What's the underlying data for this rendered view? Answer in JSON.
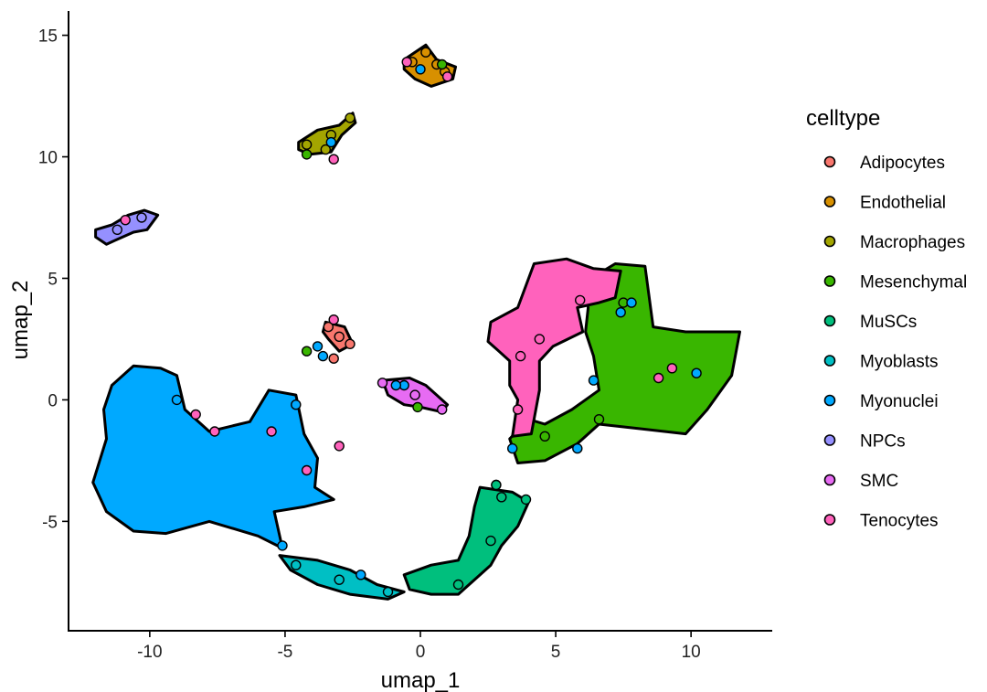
{
  "chart_data": {
    "type": "scatter",
    "title": "",
    "xlabel": "umap_1",
    "ylabel": "umap_2",
    "xlim": [
      -13.0,
      13.0
    ],
    "ylim": [
      -9.5,
      16.0
    ],
    "x_ticks": [
      -10,
      -5,
      0,
      5,
      10
    ],
    "x_tick_labels": [
      "-10",
      "-5",
      "0",
      "5",
      "10"
    ],
    "y_ticks": [
      -5,
      0,
      5,
      10,
      15
    ],
    "y_tick_labels": [
      "-5",
      "0",
      "5",
      "10",
      "15"
    ],
    "grid": false,
    "legend_title": "celltype",
    "legend_position": "right",
    "series": [
      {
        "name": "Adipocytes",
        "color": "#F8766D",
        "region": [
          [
            -3.5,
            3.2
          ],
          [
            -2.8,
            3.0
          ],
          [
            -2.5,
            2.3
          ],
          [
            -3.0,
            2.0
          ],
          [
            -3.4,
            2.5
          ],
          [
            -3.6,
            2.8
          ]
        ],
        "points": [
          [
            -3.4,
            3.0
          ],
          [
            -3.0,
            2.6
          ],
          [
            -2.6,
            2.3
          ],
          [
            -3.2,
            1.7
          ]
        ]
      },
      {
        "name": "Endothelial",
        "color": "#D89000",
        "region": [
          [
            -0.6,
            14.0
          ],
          [
            0.2,
            14.6
          ],
          [
            0.6,
            14.0
          ],
          [
            1.3,
            13.7
          ],
          [
            1.2,
            13.2
          ],
          [
            0.4,
            12.9
          ],
          [
            -0.2,
            13.2
          ],
          [
            -0.6,
            13.6
          ]
        ],
        "points": [
          [
            0.2,
            14.3
          ],
          [
            0.6,
            13.8
          ],
          [
            0.9,
            13.5
          ],
          [
            -0.3,
            13.9
          ]
        ]
      },
      {
        "name": "Macrophages",
        "color": "#A3A500",
        "region": [
          [
            -4.5,
            10.6
          ],
          [
            -3.8,
            11.1
          ],
          [
            -3.0,
            11.3
          ],
          [
            -2.5,
            11.8
          ],
          [
            -2.4,
            11.4
          ],
          [
            -2.9,
            10.9
          ],
          [
            -3.3,
            10.2
          ],
          [
            -4.1,
            10.1
          ],
          [
            -4.5,
            10.3
          ]
        ],
        "points": [
          [
            -4.2,
            10.5
          ],
          [
            -3.3,
            10.9
          ],
          [
            -2.6,
            11.6
          ],
          [
            -3.5,
            10.3
          ]
        ]
      },
      {
        "name": "Mesenchymal",
        "color": "#39B600",
        "region": [
          [
            6.0,
            4.8
          ],
          [
            7.2,
            5.6
          ],
          [
            8.3,
            5.5
          ],
          [
            8.6,
            3.0
          ],
          [
            9.8,
            2.8
          ],
          [
            11.8,
            2.8
          ],
          [
            11.5,
            1.0
          ],
          [
            10.6,
            -0.4
          ],
          [
            9.8,
            -1.4
          ],
          [
            8.2,
            -1.2
          ],
          [
            6.6,
            -1.0
          ],
          [
            5.8,
            -1.8
          ],
          [
            4.6,
            -2.5
          ],
          [
            3.6,
            -2.6
          ],
          [
            3.3,
            -1.6
          ],
          [
            4.0,
            -0.8
          ],
          [
            4.6,
            -1.0
          ],
          [
            5.6,
            -0.4
          ],
          [
            6.6,
            0.4
          ],
          [
            6.4,
            1.8
          ],
          [
            6.1,
            2.8
          ],
          [
            6.2,
            3.8
          ]
        ],
        "points": [
          [
            -4.2,
            2.0
          ],
          [
            2.8,
            -3.5
          ],
          [
            4.6,
            -1.5
          ],
          [
            6.6,
            -0.8
          ],
          [
            7.5,
            4.0
          ],
          [
            -4.2,
            10.1
          ],
          [
            0.8,
            13.8
          ],
          [
            -0.1,
            -0.3
          ]
        ]
      },
      {
        "name": "MuSCs",
        "color": "#00BF7D",
        "region": [
          [
            2.2,
            -3.6
          ],
          [
            3.4,
            -3.8
          ],
          [
            4.0,
            -4.2
          ],
          [
            3.6,
            -5.2
          ],
          [
            3.0,
            -6.0
          ],
          [
            2.6,
            -6.8
          ],
          [
            2.0,
            -7.4
          ],
          [
            1.4,
            -8.0
          ],
          [
            0.4,
            -8.0
          ],
          [
            -0.4,
            -7.8
          ],
          [
            -0.6,
            -7.2
          ],
          [
            0.4,
            -6.8
          ],
          [
            1.4,
            -6.6
          ],
          [
            1.8,
            -5.6
          ],
          [
            2.0,
            -4.4
          ]
        ],
        "points": [
          [
            2.8,
            -3.5
          ],
          [
            3.0,
            -4.0
          ],
          [
            3.9,
            -4.1
          ],
          [
            2.6,
            -5.8
          ],
          [
            1.4,
            -7.6
          ]
        ]
      },
      {
        "name": "Myoblasts",
        "color": "#00BFC4",
        "region": [
          [
            -5.2,
            -6.4
          ],
          [
            -3.8,
            -6.6
          ],
          [
            -2.6,
            -7.0
          ],
          [
            -1.6,
            -7.6
          ],
          [
            -0.6,
            -7.9
          ],
          [
            -1.2,
            -8.2
          ],
          [
            -2.6,
            -8.0
          ],
          [
            -3.8,
            -7.6
          ],
          [
            -4.8,
            -7.0
          ]
        ],
        "points": [
          [
            -4.6,
            -6.8
          ],
          [
            -3.0,
            -7.4
          ],
          [
            -1.2,
            -7.9
          ]
        ]
      },
      {
        "name": "Myonuclei",
        "color": "#00A9FF",
        "region": [
          [
            -11.4,
            0.6
          ],
          [
            -10.6,
            1.4
          ],
          [
            -9.6,
            1.3
          ],
          [
            -9.0,
            1.0
          ],
          [
            -8.7,
            -0.4
          ],
          [
            -7.8,
            -1.3
          ],
          [
            -6.3,
            -0.9
          ],
          [
            -5.6,
            0.4
          ],
          [
            -4.6,
            0.2
          ],
          [
            -4.3,
            -1.4
          ],
          [
            -3.8,
            -2.4
          ],
          [
            -3.9,
            -3.6
          ],
          [
            -3.2,
            -4.1
          ],
          [
            -4.3,
            -4.4
          ],
          [
            -5.4,
            -4.6
          ],
          [
            -5.1,
            -6.1
          ],
          [
            -6.0,
            -5.6
          ],
          [
            -7.8,
            -5.0
          ],
          [
            -9.4,
            -5.5
          ],
          [
            -10.6,
            -5.4
          ],
          [
            -11.6,
            -4.6
          ],
          [
            -12.1,
            -3.4
          ],
          [
            -11.6,
            -1.6
          ],
          [
            -11.7,
            -0.4
          ]
        ],
        "points": [
          [
            -9.0,
            0.0
          ],
          [
            -4.6,
            -0.2
          ],
          [
            -3.6,
            1.8
          ],
          [
            -3.8,
            2.2
          ],
          [
            6.4,
            0.8
          ],
          [
            7.4,
            3.6
          ],
          [
            7.8,
            4.0
          ],
          [
            10.2,
            1.1
          ],
          [
            3.4,
            -2.0
          ],
          [
            0.0,
            13.6
          ],
          [
            -3.3,
            10.6
          ],
          [
            -5.1,
            -6.0
          ],
          [
            -2.2,
            -7.2
          ],
          [
            -0.6,
            0.6
          ],
          [
            -0.9,
            0.6
          ],
          [
            5.8,
            -2.0
          ]
        ]
      },
      {
        "name": "NPCs",
        "color": "#9590FF",
        "region": [
          [
            -12.0,
            7.0
          ],
          [
            -11.4,
            7.2
          ],
          [
            -10.8,
            7.6
          ],
          [
            -10.2,
            7.8
          ],
          [
            -9.7,
            7.6
          ],
          [
            -10.1,
            7.0
          ],
          [
            -10.6,
            6.9
          ],
          [
            -11.2,
            6.6
          ],
          [
            -11.6,
            6.4
          ],
          [
            -12.0,
            6.7
          ]
        ],
        "points": [
          [
            -11.2,
            7.0
          ],
          [
            -10.3,
            7.5
          ]
        ]
      },
      {
        "name": "SMC",
        "color": "#E76BF3",
        "region": [
          [
            -1.4,
            0.8
          ],
          [
            -0.4,
            0.9
          ],
          [
            0.2,
            0.6
          ],
          [
            0.6,
            0.2
          ],
          [
            1.0,
            -0.2
          ],
          [
            0.8,
            -0.5
          ],
          [
            0.0,
            -0.3
          ],
          [
            -0.6,
            -0.2
          ],
          [
            -1.2,
            0.2
          ]
        ],
        "points": [
          [
            -1.4,
            0.7
          ],
          [
            -0.2,
            0.2
          ],
          [
            0.8,
            -0.4
          ]
        ]
      },
      {
        "name": "Tenocytes",
        "color": "#FF62BC",
        "region": [
          [
            2.6,
            3.2
          ],
          [
            3.6,
            3.8
          ],
          [
            4.2,
            5.6
          ],
          [
            5.4,
            5.8
          ],
          [
            6.4,
            5.4
          ],
          [
            7.4,
            5.3
          ],
          [
            7.2,
            4.2
          ],
          [
            6.6,
            4.0
          ],
          [
            5.8,
            3.8
          ],
          [
            6.0,
            2.8
          ],
          [
            4.9,
            2.2
          ],
          [
            4.4,
            1.6
          ],
          [
            4.4,
            0.4
          ],
          [
            4.1,
            -1.4
          ],
          [
            3.4,
            -1.5
          ],
          [
            3.6,
            0.0
          ],
          [
            3.3,
            0.6
          ],
          [
            3.3,
            1.6
          ],
          [
            2.9,
            2.0
          ],
          [
            2.5,
            2.4
          ]
        ],
        "points": [
          [
            4.4,
            2.5
          ],
          [
            3.7,
            1.8
          ],
          [
            5.9,
            4.1
          ],
          [
            3.6,
            -0.4
          ],
          [
            9.3,
            1.3
          ],
          [
            8.8,
            0.9
          ],
          [
            -10.9,
            7.4
          ],
          [
            -3.2,
            9.9
          ],
          [
            -0.5,
            13.9
          ],
          [
            1.0,
            13.3
          ],
          [
            -3.2,
            3.3
          ],
          [
            -8.3,
            -0.6
          ],
          [
            -7.6,
            -1.3
          ],
          [
            -5.5,
            -1.3
          ],
          [
            -4.2,
            -2.9
          ],
          [
            -3.0,
            -1.9
          ]
        ]
      }
    ]
  }
}
